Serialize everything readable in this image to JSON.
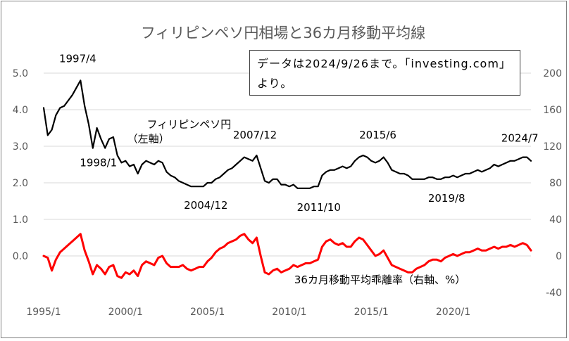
{
  "chart_data": {
    "type": "line",
    "title": "フィリピンペソ円相場と36カ月移動平均線",
    "note": "データは2024/9/26まで。「investing.com」より。",
    "x_ticks": [
      "1995/1",
      "2000/1",
      "2005/1",
      "2010/1",
      "2015/1",
      "2020/1"
    ],
    "x_tick_values": [
      1995.0,
      2000.0,
      2005.0,
      2010.0,
      2015.0,
      2020.0
    ],
    "xlim": [
      1995.0,
      2024.75
    ],
    "y_left_ticks": [
      "0.0",
      "1.0",
      "2.0",
      "3.0",
      "4.0",
      "5.0"
    ],
    "y_left_lim": [
      -1.0,
      5.0
    ],
    "y_right_ticks": [
      "-40",
      "0",
      "40",
      "80",
      "120",
      "160",
      "200"
    ],
    "y_right_lim": [
      -40,
      200
    ],
    "grid": "horizontal",
    "series": [
      {
        "name": "フィリピンペソ円（左軸）",
        "axis": "left",
        "color": "#000000",
        "x": [
          1995.0,
          1995.25,
          1995.5,
          1995.75,
          1996.0,
          1996.25,
          1996.5,
          1996.75,
          1997.0,
          1997.25,
          1997.5,
          1997.75,
          1998.0,
          1998.25,
          1998.5,
          1998.75,
          1999.0,
          1999.25,
          1999.5,
          1999.75,
          2000.0,
          2000.25,
          2000.5,
          2000.75,
          2001.0,
          2001.25,
          2001.5,
          2001.75,
          2002.0,
          2002.25,
          2002.5,
          2002.75,
          2003.0,
          2003.25,
          2003.5,
          2003.75,
          2004.0,
          2004.25,
          2004.5,
          2004.75,
          2005.0,
          2005.25,
          2005.5,
          2005.75,
          2006.0,
          2006.25,
          2006.5,
          2006.75,
          2007.0,
          2007.25,
          2007.5,
          2007.75,
          2008.0,
          2008.25,
          2008.5,
          2008.75,
          2009.0,
          2009.25,
          2009.5,
          2009.75,
          2010.0,
          2010.25,
          2010.5,
          2010.75,
          2011.0,
          2011.25,
          2011.5,
          2011.75,
          2012.0,
          2012.25,
          2012.5,
          2012.75,
          2013.0,
          2013.25,
          2013.5,
          2013.75,
          2014.0,
          2014.25,
          2014.5,
          2014.75,
          2015.0,
          2015.25,
          2015.5,
          2015.75,
          2016.0,
          2016.25,
          2016.5,
          2016.75,
          2017.0,
          2017.25,
          2017.5,
          2017.75,
          2018.0,
          2018.25,
          2018.5,
          2018.75,
          2019.0,
          2019.25,
          2019.5,
          2019.75,
          2020.0,
          2020.25,
          2020.5,
          2020.75,
          2021.0,
          2021.25,
          2021.5,
          2021.75,
          2022.0,
          2022.25,
          2022.5,
          2022.75,
          2023.0,
          2023.25,
          2023.5,
          2023.75,
          2024.0,
          2024.25,
          2024.5,
          2024.75
        ],
        "values": [
          4.05,
          3.3,
          3.45,
          3.85,
          4.05,
          4.1,
          4.25,
          4.4,
          4.6,
          4.8,
          4.1,
          3.6,
          2.95,
          3.5,
          3.2,
          2.95,
          3.2,
          3.25,
          2.75,
          2.55,
          2.6,
          2.45,
          2.5,
          2.25,
          2.5,
          2.6,
          2.55,
          2.5,
          2.6,
          2.55,
          2.3,
          2.2,
          2.15,
          2.05,
          2.0,
          1.95,
          1.9,
          1.9,
          1.9,
          1.9,
          2.0,
          2.0,
          2.1,
          2.15,
          2.25,
          2.35,
          2.4,
          2.5,
          2.6,
          2.7,
          2.65,
          2.6,
          2.75,
          2.4,
          2.05,
          2.0,
          2.1,
          2.1,
          1.95,
          1.95,
          1.9,
          1.95,
          1.85,
          1.85,
          1.85,
          1.85,
          1.9,
          1.9,
          2.2,
          2.3,
          2.35,
          2.35,
          2.4,
          2.45,
          2.4,
          2.45,
          2.6,
          2.7,
          2.75,
          2.7,
          2.6,
          2.55,
          2.6,
          2.7,
          2.55,
          2.35,
          2.3,
          2.25,
          2.25,
          2.2,
          2.1,
          2.1,
          2.1,
          2.1,
          2.15,
          2.15,
          2.1,
          2.1,
          2.15,
          2.15,
          2.2,
          2.15,
          2.2,
          2.25,
          2.25,
          2.3,
          2.35,
          2.3,
          2.35,
          2.4,
          2.5,
          2.45,
          2.5,
          2.55,
          2.6,
          2.6,
          2.65,
          2.7,
          2.7,
          2.6
        ]
      },
      {
        "name": "36カ月移動平均乖離率（右軸、%）",
        "axis": "right",
        "color": "#ff0000",
        "x": [
          1995.0,
          1995.25,
          1995.5,
          1995.75,
          1996.0,
          1996.25,
          1996.5,
          1996.75,
          1997.0,
          1997.25,
          1997.5,
          1997.75,
          1998.0,
          1998.25,
          1998.5,
          1998.75,
          1999.0,
          1999.25,
          1999.5,
          1999.75,
          2000.0,
          2000.25,
          2000.5,
          2000.75,
          2001.0,
          2001.25,
          2001.5,
          2001.75,
          2002.0,
          2002.25,
          2002.5,
          2002.75,
          2003.0,
          2003.25,
          2003.5,
          2003.75,
          2004.0,
          2004.25,
          2004.5,
          2004.75,
          2005.0,
          2005.25,
          2005.5,
          2005.75,
          2006.0,
          2006.25,
          2006.5,
          2006.75,
          2007.0,
          2007.25,
          2007.5,
          2007.75,
          2008.0,
          2008.25,
          2008.5,
          2008.75,
          2009.0,
          2009.25,
          2009.5,
          2009.75,
          2010.0,
          2010.25,
          2010.5,
          2010.75,
          2011.0,
          2011.25,
          2011.5,
          2011.75,
          2012.0,
          2012.25,
          2012.5,
          2012.75,
          2013.0,
          2013.25,
          2013.5,
          2013.75,
          2014.0,
          2014.25,
          2014.5,
          2014.75,
          2015.0,
          2015.25,
          2015.5,
          2015.75,
          2016.0,
          2016.25,
          2016.5,
          2016.75,
          2017.0,
          2017.25,
          2017.5,
          2017.75,
          2018.0,
          2018.25,
          2018.5,
          2018.75,
          2019.0,
          2019.25,
          2019.5,
          2019.75,
          2020.0,
          2020.25,
          2020.5,
          2020.75,
          2021.0,
          2021.25,
          2021.5,
          2021.75,
          2022.0,
          2022.25,
          2022.5,
          2022.75,
          2023.0,
          2023.25,
          2023.5,
          2023.75,
          2024.0,
          2024.25,
          2024.5,
          2024.75
        ],
        "values": [
          0,
          -2,
          -16,
          -4,
          4,
          8,
          12,
          16,
          20,
          24,
          6,
          -6,
          -20,
          -10,
          -14,
          -20,
          -12,
          -10,
          -22,
          -24,
          -18,
          -20,
          -16,
          -22,
          -10,
          -6,
          -8,
          -10,
          -2,
          0,
          -8,
          -12,
          -12,
          -12,
          -10,
          -14,
          -16,
          -14,
          -12,
          -12,
          -6,
          -2,
          4,
          8,
          10,
          14,
          16,
          18,
          22,
          24,
          18,
          14,
          20,
          0,
          -18,
          -20,
          -16,
          -14,
          -18,
          -16,
          -14,
          -10,
          -12,
          -10,
          -8,
          -8,
          -6,
          -4,
          10,
          16,
          18,
          14,
          12,
          14,
          10,
          10,
          16,
          20,
          18,
          12,
          6,
          0,
          2,
          6,
          -2,
          -10,
          -12,
          -14,
          -16,
          -18,
          -18,
          -14,
          -12,
          -10,
          -6,
          -4,
          -4,
          -6,
          -2,
          0,
          2,
          0,
          2,
          4,
          4,
          6,
          8,
          6,
          6,
          8,
          10,
          8,
          10,
          10,
          12,
          10,
          12,
          14,
          12,
          6
        ]
      }
    ],
    "annotations": [
      {
        "text": "1997/4",
        "x": 1997.25,
        "y": 4.8,
        "axis": "left"
      },
      {
        "text": "1998/1",
        "x": 1998.0,
        "y": 2.95,
        "axis": "left"
      },
      {
        "text": "2004/12",
        "x": 2004.9,
        "y": 1.9,
        "axis": "left"
      },
      {
        "text": "2007/12",
        "x": 2007.9,
        "y": 2.75,
        "axis": "left"
      },
      {
        "text": "2011/10",
        "x": 2011.8,
        "y": 1.85,
        "axis": "left"
      },
      {
        "text": "2015/6",
        "x": 2015.4,
        "y": 2.75,
        "axis": "left"
      },
      {
        "text": "2019/8",
        "x": 2019.6,
        "y": 2.1,
        "axis": "left"
      },
      {
        "text": "2024/7",
        "x": 2024.5,
        "y": 2.7,
        "axis": "left"
      }
    ],
    "series_labels": [
      {
        "text": "フィリピンペソ円",
        "x": 2001.3,
        "y": 3.6,
        "axis": "left"
      },
      {
        "text": "（左軸）",
        "x": 2000.1,
        "y": 3.2,
        "axis": "left"
      },
      {
        "text": "36カ月移動平均乖離率（右軸、%）",
        "x": 2010.3,
        "y": -0.65,
        "axis": "left"
      }
    ]
  }
}
